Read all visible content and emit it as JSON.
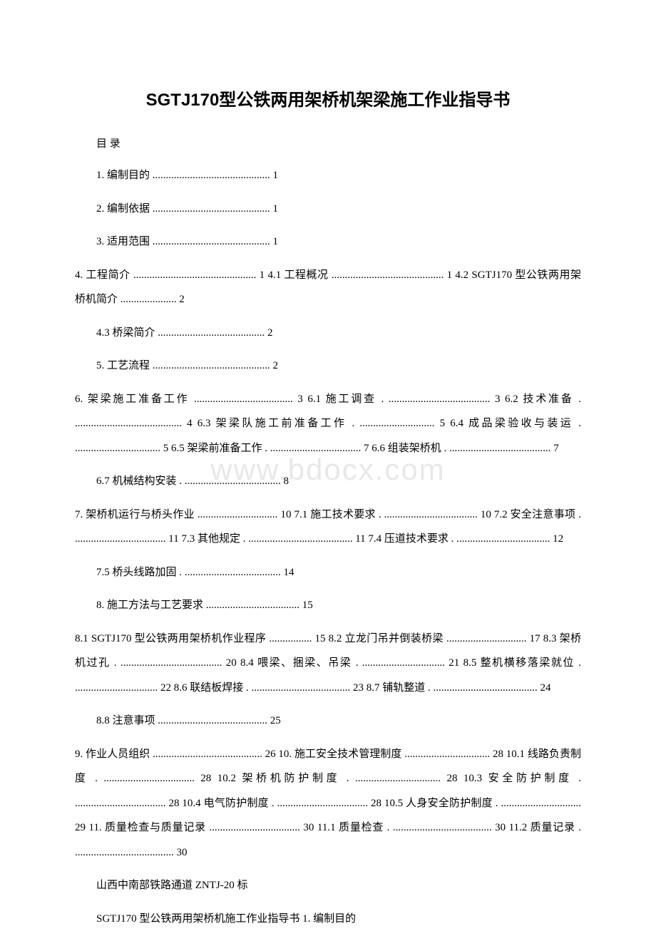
{
  "title": "SGTJ170型公铁两用架桥机架梁施工作业指导书",
  "toc_label": "目 录",
  "watermark": "www.bdocx.com",
  "lines": {
    "l1": "1. 编制目的 ............................................ 1",
    "l2": "2. 编制依据 ............................................ 1",
    "l3": "3. 适用范围 ............................................ 1",
    "l4": "4. 工程简介 .............................................. 1 4.1 工程概况 .......................................... 1 4.2 SGTJ170 型公铁两用架桥机简介 ..................... 2",
    "l5": "4.3 桥梁简介 ........................................ 2",
    "l6": "5. 工艺流程 ............................................ 2",
    "l7": "6. 架梁施工准备工作 ..................................... 3 6.1 施工调查 . ...................................... 3 6.2 技术准备 . ........................................ 4 6.3 架梁队施工前准备工作 . ............................ 5 6.4 成品梁验收与装运 . ................................ 5 6.5 架梁前准备工作 . .................................. 7 6.6 组装架桥机 . ...................................... 7",
    "l8": "6.7 机械结构安装 . .................................... 8",
    "l9": "7. 架桥机运行与桥头作业 .............................. 10 7.1 施工技术要求 . ................................... 10 7.2 安全注意事项 . .................................. 11 7.3 其他规定 . ....................................... 11 7.4 压道技术要求 . ................................... 12",
    "l10": "7.5 桥头线路加固 . .................................... 14",
    "l11": "8. 施工方法与工艺要求 ................................... 15",
    "l12": "8.1 SGTJ170 型公铁两用架桥机作业程序 ................ 15 8.2 立龙门吊并倒装桥梁 .............................. 17 8.3 架桥机过孔 . ...................................... 20 8.4 喂梁、捆梁、吊梁 . ............................... 21 8.5 整机横移落梁就位 . ............................... 22 8.6 联结板焊接 . ..................................... 23 8.7 铺轨整道 . ....................................... 24",
    "l13": "8.8 注意事项 ......................................... 25",
    "l14": "9. 作业人员组织 ......................................... 26 10. 施工安全技术管理制度 ................................ 28 10.1 线路负责制度 . .................................. 28 10.2 架桥机防护制度 . ................................ 28 10.3 安全防护制度 . .................................. 28 10.4 电气防护制度 . .................................. 28 10.5 人身安全防护制度 . .............................. 29 11. 质量检查与质量记录 .................................. 30 11.1 质量检查 . ..................................... 30 11.2 质量记录 . ..................................... 30",
    "footer1": "山西中南部铁路通道 ZNTJ-20 标",
    "footer2": "SGTJ170 型公铁两用架桥机施工作业指导书 1. 编制目的"
  }
}
